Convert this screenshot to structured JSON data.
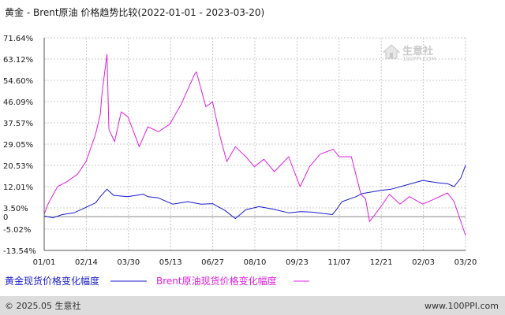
{
  "title": "黄金 - Brent原油 价格趋势比较(2022-01-01 - 2023-03-20)",
  "watermark": {
    "name": "生意社",
    "url": "100PPI.COM"
  },
  "footer": {
    "copyright": "© 2025.05 生意社",
    "site": "www.100PPI.com"
  },
  "colors": {
    "gold": "#1a1acc",
    "brent": "#e020e0",
    "grid": "#c9c9c9",
    "axis": "#555555",
    "zero": "#888888",
    "footer_bar": "#dcdcdc"
  },
  "chart_data": {
    "type": "line",
    "title": "黄金 - Brent原油 价格趋势比较(2022-01-01 - 2023-03-20)",
    "x_range": [
      "2022-01-01",
      "2023-03-20"
    ],
    "ylim": [
      -13.54,
      71.64
    ],
    "grid": true,
    "legend_position": "bottom-left",
    "x_tick_labels": [
      "01/01",
      "02/14",
      "03/30",
      "05/13",
      "06/27",
      "08/10",
      "09/23",
      "11/07",
      "12/21",
      "02/03",
      "03/20"
    ],
    "y_tick_labels": [
      "71.64%",
      "63.12%",
      "54.60%",
      "46.09%",
      "37.57%",
      "29.05%",
      "20.53%",
      "12.01%",
      "3.50%",
      "-5.02%",
      "-13.54%"
    ],
    "series": [
      {
        "name": "黄金现货价格变化幅度",
        "color": "#1a1acc",
        "x": [
          "2022-01-01",
          "2022-01-10",
          "2022-01-20",
          "2022-02-01",
          "2022-02-10",
          "2022-02-24",
          "2022-03-01",
          "2022-03-08",
          "2022-03-15",
          "2022-03-30",
          "2022-04-15",
          "2022-04-20",
          "2022-05-01",
          "2022-05-16",
          "2022-06-01",
          "2022-06-15",
          "2022-06-27",
          "2022-07-10",
          "2022-07-21",
          "2022-08-01",
          "2022-08-15",
          "2022-08-30",
          "2022-09-15",
          "2022-09-28",
          "2022-10-10",
          "2022-10-31",
          "2022-11-03",
          "2022-11-10",
          "2022-11-25",
          "2022-12-01",
          "2022-12-21",
          "2023-01-01",
          "2023-01-15",
          "2023-02-03",
          "2023-02-20",
          "2023-03-01",
          "2023-03-08",
          "2023-03-15",
          "2023-03-20"
        ],
        "values": [
          0.3,
          -0.5,
          0.8,
          1.5,
          3.0,
          5.5,
          8.0,
          11.0,
          8.5,
          8.0,
          9.0,
          8.0,
          7.5,
          5.0,
          6.0,
          5.0,
          5.2,
          2.5,
          -0.8,
          2.8,
          4.0,
          3.0,
          1.5,
          2.0,
          1.8,
          0.8,
          2.2,
          6.0,
          8.0,
          9.2,
          10.5,
          11.0,
          12.5,
          14.5,
          13.5,
          13.2,
          12.0,
          15.5,
          20.5
        ]
      },
      {
        "name": "Brent原油现货价格变化幅度",
        "color": "#e020e0",
        "x": [
          "2022-01-01",
          "2022-01-05",
          "2022-01-15",
          "2022-01-25",
          "2022-02-05",
          "2022-02-14",
          "2022-02-24",
          "2022-03-01",
          "2022-03-03",
          "2022-03-08",
          "2022-03-10",
          "2022-03-16",
          "2022-03-23",
          "2022-03-30",
          "2022-04-11",
          "2022-04-20",
          "2022-05-01",
          "2022-05-13",
          "2022-05-25",
          "2022-06-08",
          "2022-06-10",
          "2022-06-20",
          "2022-06-27",
          "2022-07-05",
          "2022-07-12",
          "2022-07-21",
          "2022-08-01",
          "2022-08-10",
          "2022-08-20",
          "2022-08-31",
          "2022-09-15",
          "2022-09-27",
          "2022-10-07",
          "2022-10-18",
          "2022-11-01",
          "2022-11-07",
          "2022-11-20",
          "2022-11-30",
          "2022-12-05",
          "2022-12-09",
          "2022-12-21",
          "2022-12-30",
          "2023-01-10",
          "2023-01-20",
          "2023-02-03",
          "2023-02-15",
          "2023-03-01",
          "2023-03-08",
          "2023-03-15",
          "2023-03-20"
        ],
        "values": [
          1.0,
          5.0,
          12.0,
          14.0,
          17.0,
          22.0,
          33.0,
          41.0,
          50.0,
          65.0,
          35.0,
          30.0,
          42.0,
          40.0,
          28.0,
          36.0,
          34.0,
          37.0,
          45.0,
          57.0,
          58.0,
          44.0,
          46.0,
          32.0,
          22.0,
          28.0,
          24.0,
          20.0,
          23.0,
          18.0,
          24.0,
          12.0,
          20.0,
          25.0,
          27.0,
          24.0,
          24.0,
          9.0,
          7.0,
          -2.0,
          4.0,
          9.0,
          5.0,
          8.0,
          5.0,
          7.0,
          9.5,
          6.0,
          -2.0,
          -7.5
        ]
      }
    ]
  }
}
